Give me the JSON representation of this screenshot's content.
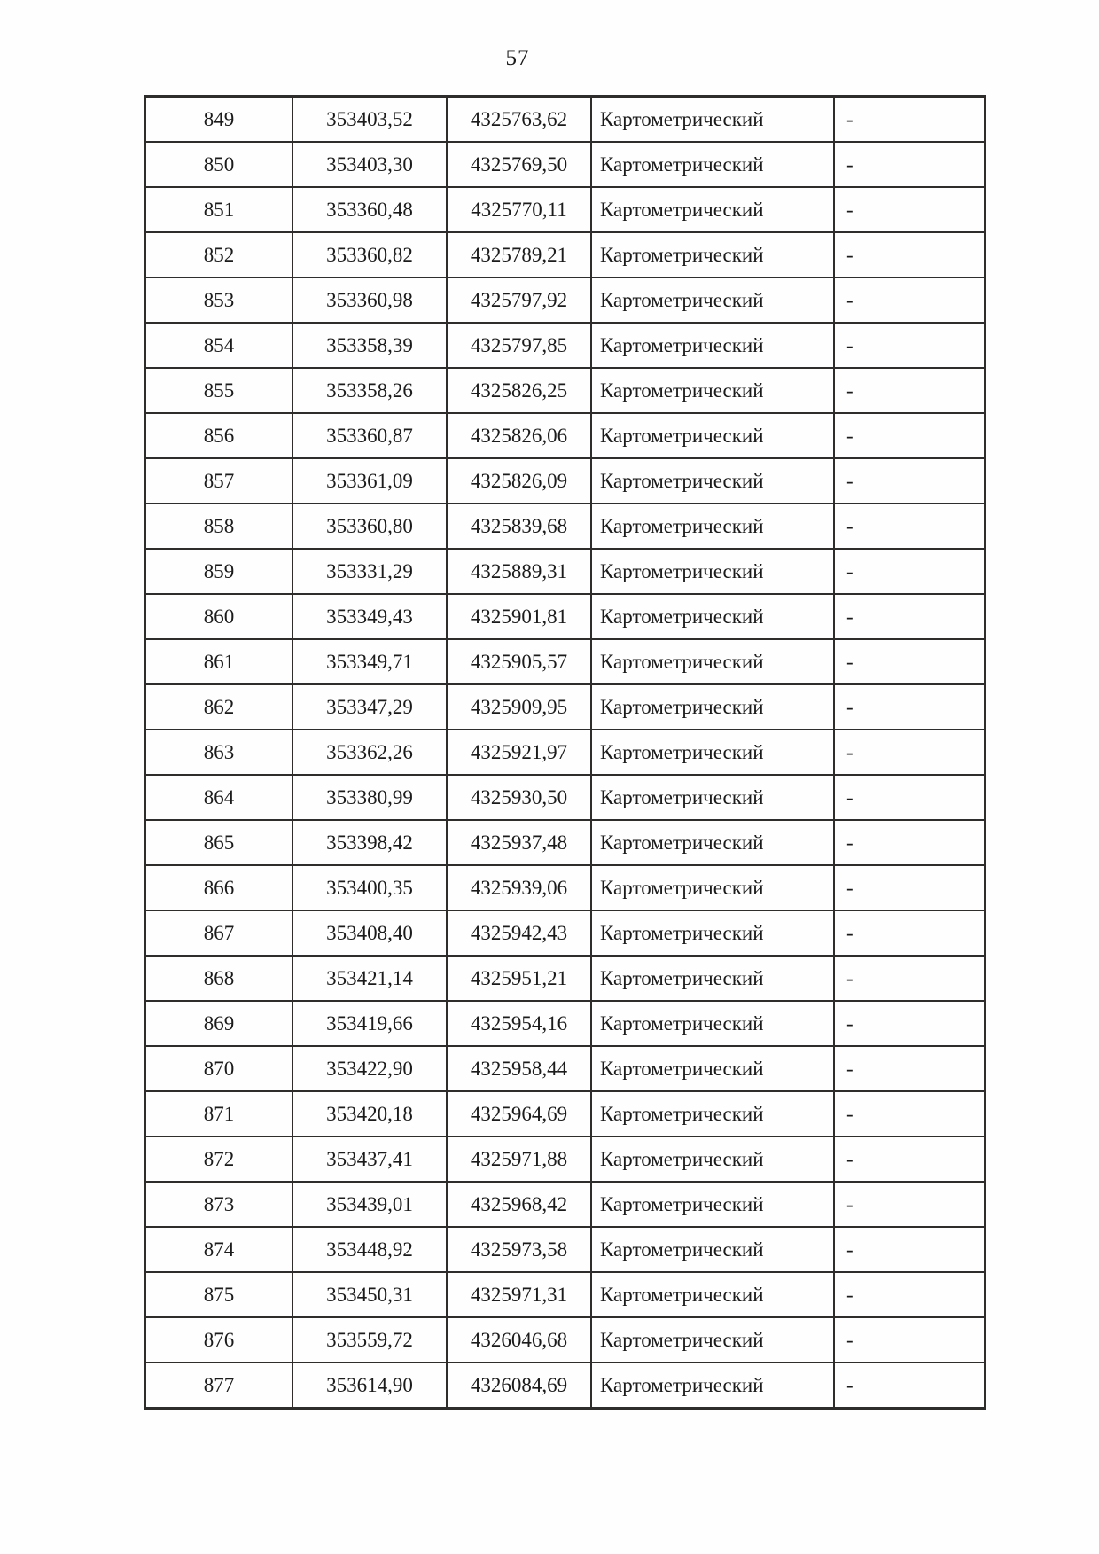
{
  "page": {
    "number": "57"
  },
  "table": {
    "field_order": [
      "n",
      "x",
      "y",
      "method",
      "note"
    ],
    "rows": [
      {
        "n": "849",
        "x": "353403,52",
        "y": "4325763,62",
        "method": "Картометрический",
        "note": "-"
      },
      {
        "n": "850",
        "x": "353403,30",
        "y": "4325769,50",
        "method": "Картометрический",
        "note": "-"
      },
      {
        "n": "851",
        "x": "353360,48",
        "y": "4325770,11",
        "method": "Картометрический",
        "note": "-"
      },
      {
        "n": "852",
        "x": "353360,82",
        "y": "4325789,21",
        "method": "Картометрический",
        "note": "-"
      },
      {
        "n": "853",
        "x": "353360,98",
        "y": "4325797,92",
        "method": "Картометрический",
        "note": "-"
      },
      {
        "n": "854",
        "x": "353358,39",
        "y": "4325797,85",
        "method": "Картометрический",
        "note": "-"
      },
      {
        "n": "855",
        "x": "353358,26",
        "y": "4325826,25",
        "method": "Картометрический",
        "note": "-"
      },
      {
        "n": "856",
        "x": "353360,87",
        "y": "4325826,06",
        "method": "Картометрический",
        "note": "-"
      },
      {
        "n": "857",
        "x": "353361,09",
        "y": "4325826,09",
        "method": "Картометрический",
        "note": "-"
      },
      {
        "n": "858",
        "x": "353360,80",
        "y": "4325839,68",
        "method": "Картометрический",
        "note": "-"
      },
      {
        "n": "859",
        "x": "353331,29",
        "y": "4325889,31",
        "method": "Картометрический",
        "note": "-"
      },
      {
        "n": "860",
        "x": "353349,43",
        "y": "4325901,81",
        "method": "Картометрический",
        "note": "-"
      },
      {
        "n": "861",
        "x": "353349,71",
        "y": "4325905,57",
        "method": "Картометрический",
        "note": "-"
      },
      {
        "n": "862",
        "x": "353347,29",
        "y": "4325909,95",
        "method": "Картометрический",
        "note": "-"
      },
      {
        "n": "863",
        "x": "353362,26",
        "y": "4325921,97",
        "method": "Картометрический",
        "note": "-"
      },
      {
        "n": "864",
        "x": "353380,99",
        "y": "4325930,50",
        "method": "Картометрический",
        "note": "-"
      },
      {
        "n": "865",
        "x": "353398,42",
        "y": "4325937,48",
        "method": "Картометрический",
        "note": "-"
      },
      {
        "n": "866",
        "x": "353400,35",
        "y": "4325939,06",
        "method": "Картометрический",
        "note": "-"
      },
      {
        "n": "867",
        "x": "353408,40",
        "y": "4325942,43",
        "method": "Картометрический",
        "note": "-"
      },
      {
        "n": "868",
        "x": "353421,14",
        "y": "4325951,21",
        "method": "Картометрический",
        "note": "-"
      },
      {
        "n": "869",
        "x": "353419,66",
        "y": "4325954,16",
        "method": "Картометрический",
        "note": "-"
      },
      {
        "n": "870",
        "x": "353422,90",
        "y": "4325958,44",
        "method": "Картометрический",
        "note": "-"
      },
      {
        "n": "871",
        "x": "353420,18",
        "y": "4325964,69",
        "method": "Картометрический",
        "note": "-"
      },
      {
        "n": "872",
        "x": "353437,41",
        "y": "4325971,88",
        "method": "Картометрический",
        "note": "-"
      },
      {
        "n": "873",
        "x": "353439,01",
        "y": "4325968,42",
        "method": "Картометрический",
        "note": "-"
      },
      {
        "n": "874",
        "x": "353448,92",
        "y": "4325973,58",
        "method": "Картометрический",
        "note": "-"
      },
      {
        "n": "875",
        "x": "353450,31",
        "y": "4325971,31",
        "method": "Картометрический",
        "note": "-"
      },
      {
        "n": "876",
        "x": "353559,72",
        "y": "4326046,68",
        "method": "Картометрический",
        "note": "-"
      },
      {
        "n": "877",
        "x": "353614,90",
        "y": "4326084,69",
        "method": "Картометрический",
        "note": "-"
      }
    ]
  }
}
